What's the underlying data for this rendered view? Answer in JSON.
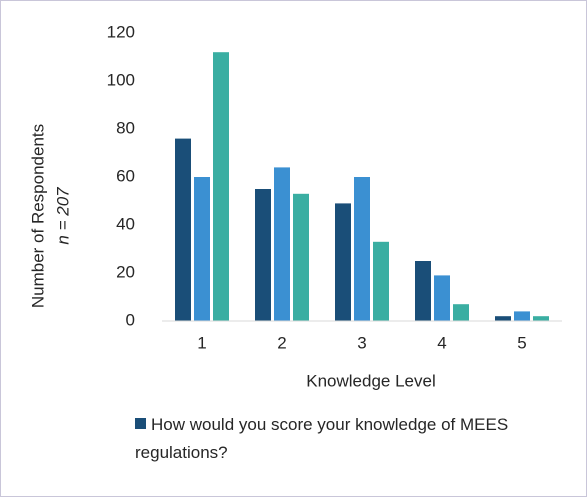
{
  "chart_data": {
    "type": "bar",
    "categories": [
      "1",
      "2",
      "3",
      "4",
      "5"
    ],
    "series": [
      {
        "name": "How would you score your knowledge of MEES regulations?",
        "color": "#1a4e78",
        "values": [
          76,
          55,
          49,
          25,
          2
        ]
      },
      {
        "color": "#3b90d2",
        "values": [
          60,
          64,
          60,
          19,
          4
        ]
      },
      {
        "color": "#3aaea2",
        "values": [
          112,
          53,
          33,
          7,
          2
        ]
      }
    ],
    "x_label": "Knowledge Level",
    "y_label": "Number of Respondents",
    "y_label_note": "n = 207",
    "ylim": [
      0,
      120
    ],
    "yticks": [
      0,
      20,
      40,
      60,
      80,
      100,
      120
    ],
    "grid": false
  }
}
